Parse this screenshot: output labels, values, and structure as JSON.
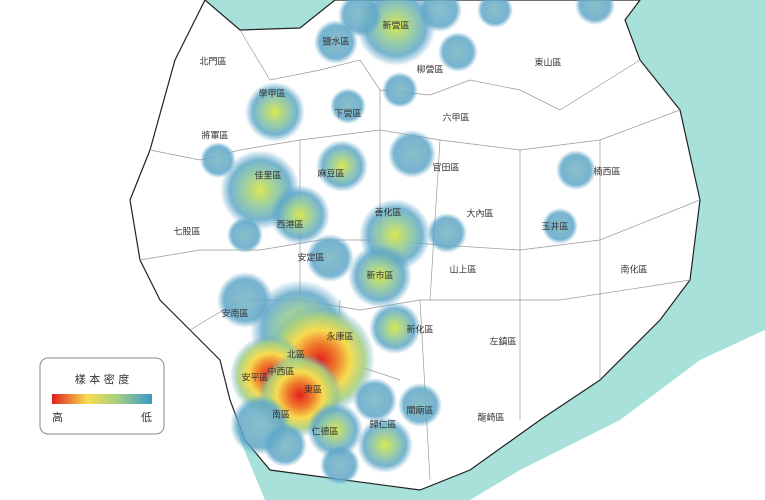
{
  "districts": [
    "北門區",
    "鹽水區",
    "新營區",
    "柳營區",
    "東山區",
    "學甲區",
    "下營區",
    "六甲區",
    "將軍區",
    "麻豆區",
    "官田區",
    "楠西區",
    "佳里區",
    "大內區",
    "善化區",
    "玉井區",
    "七股區",
    "西港區",
    "安定區",
    "山上區",
    "新市區",
    "南化區",
    "安南區",
    "新化區",
    "左鎮區",
    "永康區",
    "北區",
    "安平區",
    "中西區",
    "東區",
    "南區",
    "關廟區",
    "龍崎區",
    "仁德區",
    "歸仁區"
  ],
  "legend": {
    "title": "樣 本 密 度",
    "high": "高",
    "low": "低"
  }
}
